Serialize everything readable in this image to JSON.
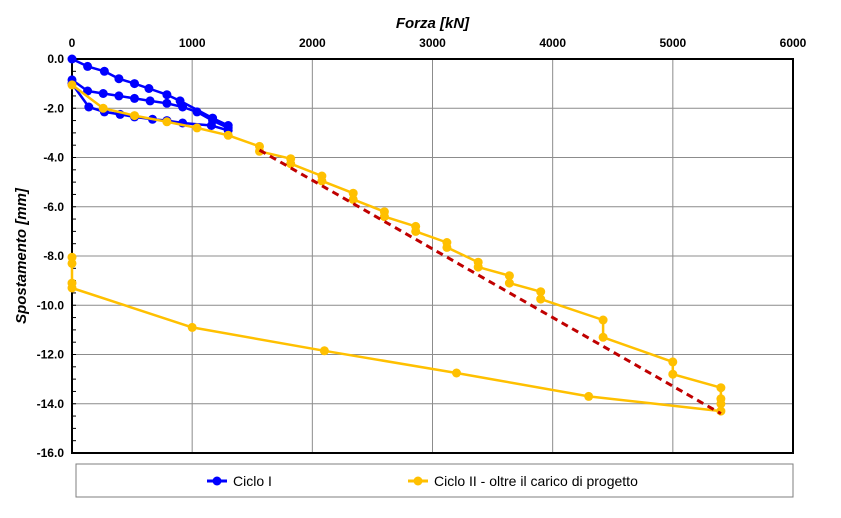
{
  "chart_data": {
    "type": "line",
    "xlabel": "Forza [kN]",
    "ylabel": "Spostamento [mm]",
    "x_axis_position": "top",
    "xlim": [
      0,
      6000
    ],
    "ylim": [
      -16,
      0
    ],
    "x_ticks": [
      "0",
      "1000",
      "2000",
      "3000",
      "4000",
      "5000",
      "6000"
    ],
    "y_ticks": [
      "0.0",
      "-2.0",
      "-4.0",
      "-6.0",
      "-8.0",
      "-10.0",
      "-12.0",
      "-14.0",
      "-16.0"
    ],
    "grid": true,
    "legend_position": "bottom",
    "series": [
      {
        "name": "Ciclo I",
        "color": "#0000ff",
        "points": [
          [
            0,
            0
          ],
          [
            130,
            -0.3
          ],
          [
            270,
            -0.5
          ],
          [
            390,
            -0.8
          ],
          [
            520,
            -1.0
          ],
          [
            640,
            -1.2
          ],
          [
            790,
            -1.45
          ],
          [
            900,
            -1.7
          ],
          [
            1170,
            -2.4
          ],
          [
            1300,
            -2.7
          ],
          [
            1300,
            -2.9
          ],
          [
            1160,
            -2.7
          ],
          [
            920,
            -2.6
          ],
          [
            790,
            -2.5
          ],
          [
            670,
            -2.45
          ],
          [
            520,
            -2.35
          ],
          [
            400,
            -2.25
          ],
          [
            270,
            -2.15
          ],
          [
            140,
            -1.95
          ],
          [
            0,
            -1.0
          ],
          [
            0,
            -0.85
          ],
          [
            130,
            -1.3
          ],
          [
            260,
            -1.4
          ],
          [
            390,
            -1.5
          ],
          [
            520,
            -1.6
          ],
          [
            650,
            -1.7
          ],
          [
            790,
            -1.8
          ],
          [
            920,
            -1.95
          ],
          [
            1040,
            -2.15
          ],
          [
            1170,
            -2.5
          ],
          [
            1300,
            -2.8
          ]
        ]
      },
      {
        "name": "Ciclo II - oltre il carico di progetto",
        "color": "#ffc000",
        "points": [
          [
            0,
            -1.05
          ],
          [
            260,
            -2.0
          ],
          [
            520,
            -2.3
          ],
          [
            790,
            -2.55
          ],
          [
            1040,
            -2.8
          ],
          [
            1300,
            -3.1
          ],
          [
            1560,
            -3.55
          ],
          [
            1560,
            -3.75
          ],
          [
            1820,
            -4.05
          ],
          [
            1820,
            -4.25
          ],
          [
            2080,
            -4.75
          ],
          [
            2080,
            -4.95
          ],
          [
            2340,
            -5.45
          ],
          [
            2340,
            -5.7
          ],
          [
            2600,
            -6.2
          ],
          [
            2600,
            -6.4
          ],
          [
            2860,
            -6.8
          ],
          [
            2860,
            -7.0
          ],
          [
            3120,
            -7.45
          ],
          [
            3120,
            -7.65
          ],
          [
            3380,
            -8.25
          ],
          [
            3380,
            -8.45
          ],
          [
            3640,
            -8.8
          ],
          [
            3640,
            -9.1
          ],
          [
            3900,
            -9.45
          ],
          [
            3900,
            -9.75
          ],
          [
            4420,
            -10.6
          ],
          [
            4420,
            -11.3
          ],
          [
            5000,
            -12.3
          ],
          [
            5000,
            -12.8
          ],
          [
            5400,
            -13.35
          ],
          [
            5400,
            -13.8
          ],
          [
            5400,
            -14.0
          ],
          [
            5400,
            -14.3
          ],
          [
            4300,
            -13.7
          ],
          [
            3200,
            -12.75
          ],
          [
            2100,
            -11.85
          ],
          [
            1000,
            -10.9
          ],
          [
            0,
            -9.3
          ],
          [
            0,
            -9.1
          ],
          [
            0,
            -8.3
          ],
          [
            0,
            -8.05
          ]
        ]
      },
      {
        "name": "",
        "color": "#c00000",
        "line_style": "dashed",
        "show_in_legend": false,
        "points": [
          [
            1560,
            -3.7
          ],
          [
            5400,
            -14.4
          ]
        ]
      }
    ]
  }
}
